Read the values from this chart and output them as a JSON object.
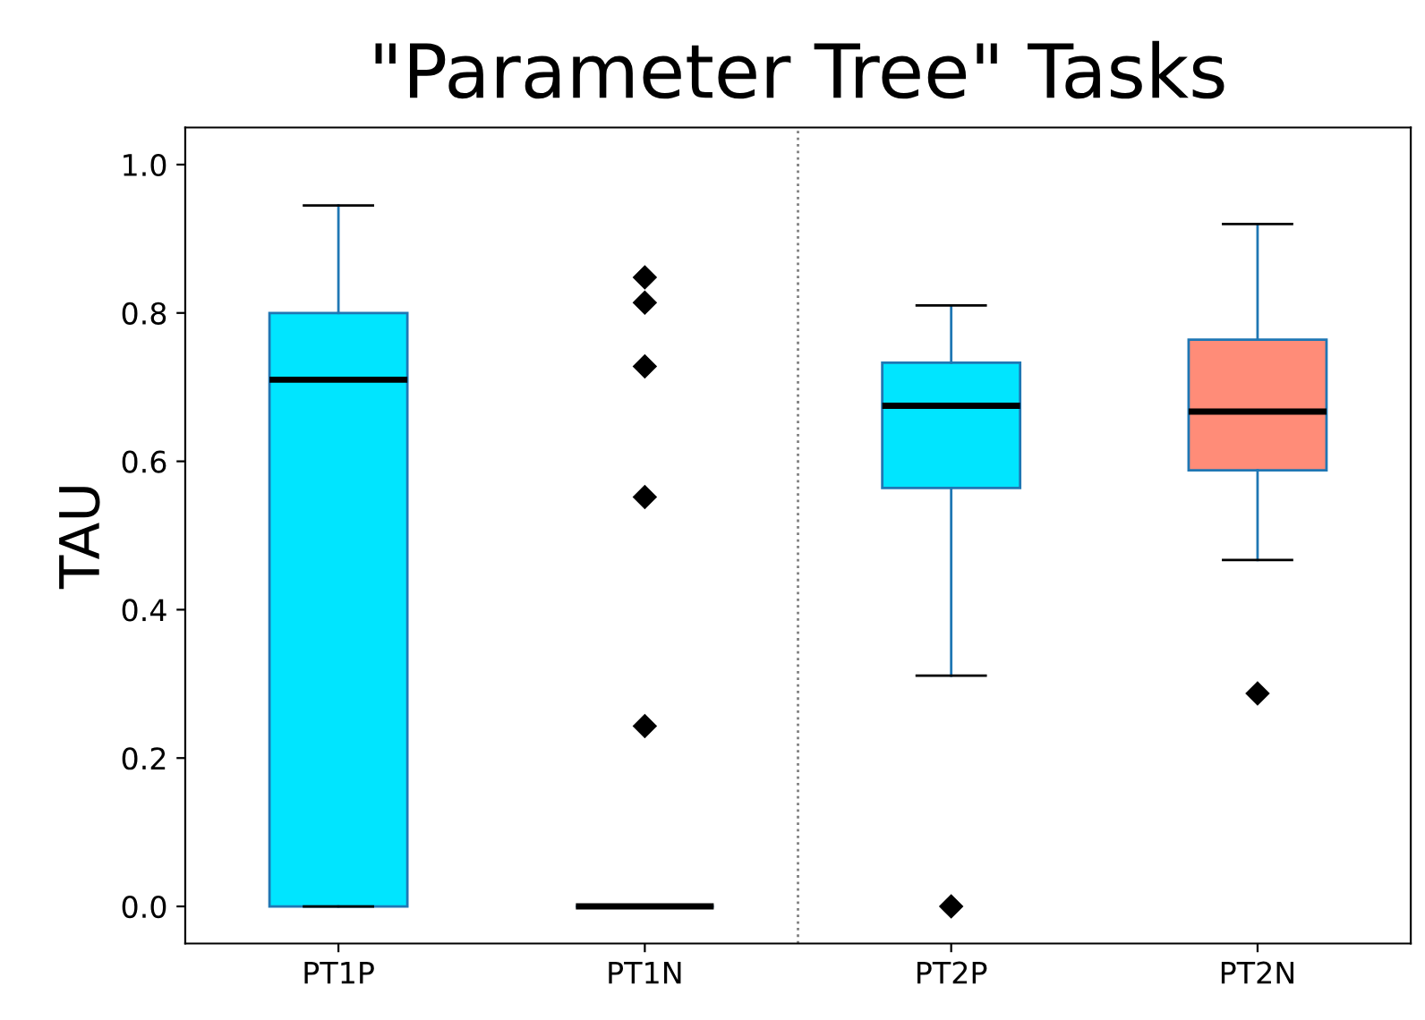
{
  "chart_data": {
    "type": "box",
    "title": "\"Parameter Tree\" Tasks",
    "ylabel": "TAU",
    "categories": [
      "PT1P",
      "PT1N",
      "PT2P",
      "PT2N"
    ],
    "colors": [
      "#00e5ff",
      "#1f77b4",
      "#00e5ff",
      "#ff8c78"
    ],
    "boxes": [
      {
        "low": 0.0,
        "q1": 0.0,
        "median": 0.71,
        "q3": 0.8,
        "high": 0.945
      },
      {
        "low": 0.0,
        "q1": 0.0,
        "median": 0.0,
        "q3": 0.0,
        "high": 0.0,
        "outliers": [
          0.848,
          0.814,
          0.728,
          0.552,
          0.243
        ]
      },
      {
        "low": 0.311,
        "q1": 0.564,
        "median": 0.675,
        "q3": 0.733,
        "high": 0.81,
        "outliers": [
          0.0
        ]
      },
      {
        "low": 0.467,
        "q1": 0.588,
        "median": 0.667,
        "q3": 0.764,
        "high": 0.92,
        "outliers": [
          0.287
        ]
      }
    ],
    "ylim": [
      -0.05,
      1.05
    ],
    "yticks": [
      {
        "value": 0.0,
        "label": "0.0"
      },
      {
        "value": 0.2,
        "label": "0.2"
      },
      {
        "value": 0.4,
        "label": "0.4"
      },
      {
        "value": 0.6,
        "label": "0.6"
      },
      {
        "value": 0.8,
        "label": "0.8"
      },
      {
        "value": 1.0,
        "label": "1.0"
      }
    ],
    "grid": false,
    "marker": "diamond"
  }
}
